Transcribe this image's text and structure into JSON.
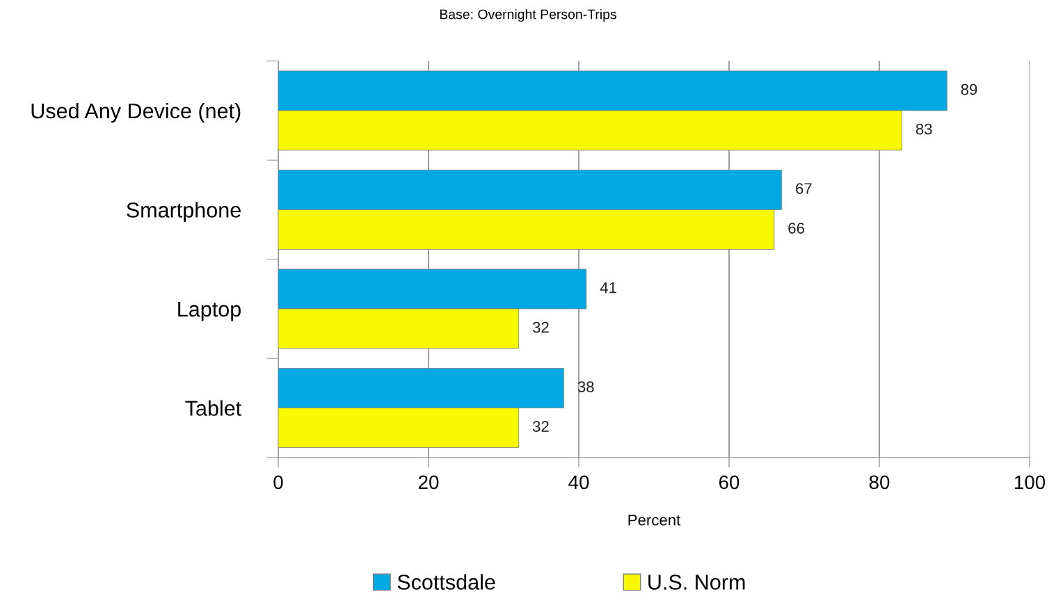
{
  "chart_data": {
    "type": "bar",
    "orientation": "horizontal",
    "title": "Base: Overnight Person-Trips",
    "xlabel": "Percent",
    "categories": [
      "Used Any Device (net)",
      "Smartphone",
      "Laptop",
      "Tablet"
    ],
    "series": [
      {
        "name": "Scottsdale",
        "color": "#00a8e4",
        "values": [
          89,
          67,
          41,
          38
        ]
      },
      {
        "name": "U.S. Norm",
        "color": "#f8f800",
        "values": [
          83,
          66,
          32,
          32
        ]
      }
    ],
    "xlim": [
      0,
      100
    ],
    "xticks": [
      0,
      20,
      40,
      60,
      80,
      100
    ],
    "grid": "x",
    "legend": "bottom",
    "data_labels": true
  }
}
